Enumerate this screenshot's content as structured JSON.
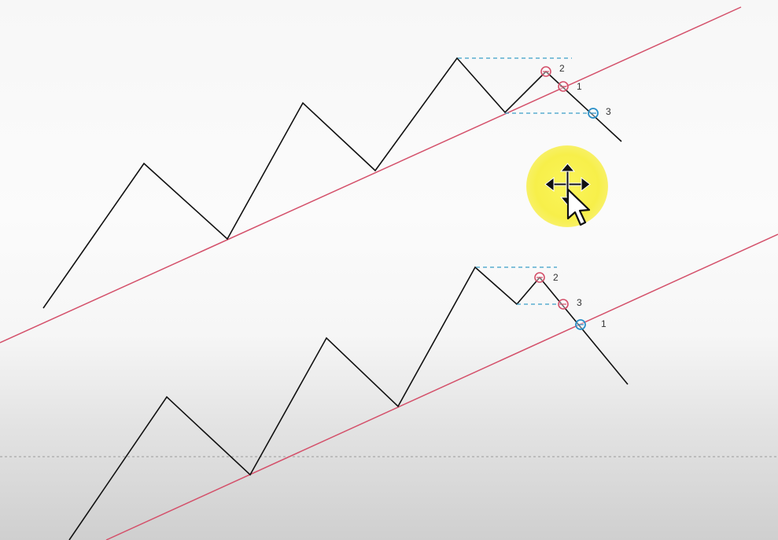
{
  "colors": {
    "price_line": "#111111",
    "trendline": "#d4506a",
    "level_line": "#3a9fc8",
    "marker_pink": "#d4506a",
    "marker_blue": "#2a8fc8",
    "cursor_highlight": "#f7ef4a",
    "separator": "#9a9a9a"
  },
  "top_pattern": {
    "markers": [
      {
        "label": "2",
        "color": "pink"
      },
      {
        "label": "1",
        "color": "pink"
      },
      {
        "label": "3",
        "color": "blue"
      }
    ]
  },
  "bottom_pattern": {
    "markers": [
      {
        "label": "2",
        "color": "pink"
      },
      {
        "label": "3",
        "color": "pink"
      },
      {
        "label": "1",
        "color": "blue"
      }
    ]
  },
  "cursor": {
    "icon": "move-cursor-icon",
    "pointer": "arrow-pointer-icon"
  }
}
